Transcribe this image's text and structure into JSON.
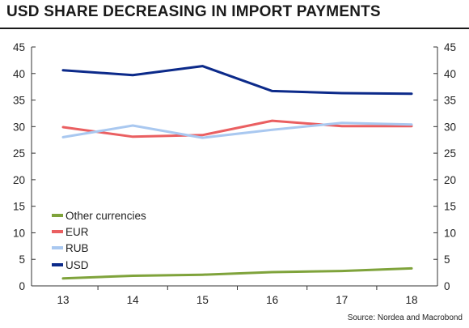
{
  "chart_data": {
    "type": "line",
    "title": "USD SHARE DECREASING IN IMPORT PAYMENTS",
    "source": "Source: Nordea and Macrobond",
    "x": [
      "13",
      "14",
      "15",
      "16",
      "17",
      "18"
    ],
    "ylim": [
      0,
      45
    ],
    "yticks": [
      0,
      5,
      10,
      15,
      20,
      25,
      30,
      35,
      40,
      45
    ],
    "grid": false,
    "legend_position": "lower-left",
    "series": [
      {
        "name": "Other currencies",
        "color": "#7fa33b",
        "values": [
          1.4,
          1.9,
          2.1,
          2.6,
          2.8,
          3.3
        ]
      },
      {
        "name": "EUR",
        "color": "#ea5f61",
        "values": [
          29.9,
          28.1,
          28.4,
          31.1,
          30.1,
          30.1
        ]
      },
      {
        "name": "RUB",
        "color": "#a9c8f0",
        "values": [
          28.0,
          30.2,
          27.9,
          29.4,
          30.7,
          30.4
        ]
      },
      {
        "name": "USD",
        "color": "#0c2a8a",
        "values": [
          40.6,
          39.7,
          41.4,
          36.7,
          36.3,
          36.2
        ]
      }
    ]
  }
}
